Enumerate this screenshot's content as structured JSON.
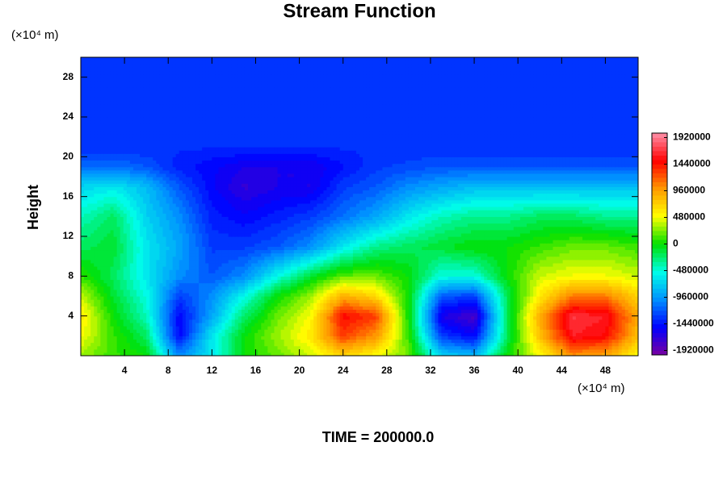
{
  "chart_data": {
    "type": "contour",
    "title": "Stream Function",
    "y_label": "Height",
    "y_unit": "(×10⁴ m)",
    "x_unit": "(×10⁴ m)",
    "footer": "TIME = 200000.0",
    "x": [
      0,
      3,
      6,
      9,
      12,
      15,
      18,
      21,
      24,
      27,
      30,
      33,
      36,
      39,
      42,
      45,
      48,
      51
    ],
    "y": [
      0,
      2,
      4,
      6,
      8,
      11,
      14,
      17,
      19,
      21,
      25,
      30
    ],
    "z": [
      [
        300000,
        100000,
        0,
        -1000000,
        -600000,
        0,
        200000,
        400000,
        700000,
        500000,
        200000,
        -700000,
        -800000,
        0,
        500000,
        1000000,
        900000,
        500000
      ],
      [
        500000,
        100000,
        -200000,
        -1500000,
        -600000,
        0,
        300000,
        600000,
        1300000,
        1000000,
        100000,
        -1300000,
        -1500000,
        -200000,
        800000,
        1600000,
        1500000,
        800000
      ],
      [
        600000,
        0,
        -400000,
        -1500000,
        -900000,
        -200000,
        200000,
        500000,
        1500000,
        1300000,
        0,
        -1600000,
        -1800000,
        -200000,
        900000,
        1700000,
        1600000,
        900000
      ],
      [
        400000,
        -100000,
        -500000,
        -1300000,
        -1000000,
        -500000,
        0,
        300000,
        900000,
        700000,
        0,
        -1200000,
        -1300000,
        -200000,
        600000,
        1100000,
        1100000,
        700000
      ],
      [
        100000,
        -200000,
        -600000,
        -1000000,
        -1200000,
        -1000000,
        -500000,
        -100000,
        200000,
        200000,
        0,
        -500000,
        -500000,
        0,
        400000,
        500000,
        500000,
        400000
      ],
      [
        -200000,
        -100000,
        -600000,
        -900000,
        -1300000,
        -1300000,
        -1200000,
        -1000000,
        -600000,
        -300000,
        -200000,
        -100000,
        0,
        0,
        100000,
        200000,
        200000,
        100000
      ],
      [
        -400000,
        -200000,
        -700000,
        -1000000,
        -1400000,
        -1500000,
        -1400000,
        -1300000,
        -1100000,
        -900000,
        -600000,
        -400000,
        -300000,
        -300000,
        -200000,
        -200000,
        -300000,
        -300000
      ],
      [
        -700000,
        -600000,
        -800000,
        -1200000,
        -1500000,
        -1700000,
        -1600000,
        -1600000,
        -1300000,
        -1200000,
        -1000000,
        -900000,
        -800000,
        -800000,
        -800000,
        -800000,
        -800000,
        -800000
      ],
      [
        -1100000,
        -1100000,
        -1200000,
        -1400000,
        -1500000,
        -1600000,
        -1600000,
        -1600000,
        -1450000,
        -1300000,
        -1250000,
        -1200000,
        -1200000,
        -1200000,
        -1200000,
        -1200000,
        -1200000,
        -1200000
      ],
      [
        -1350000,
        -1350000,
        -1350000,
        -1350000,
        -1350000,
        -1350000,
        -1350000,
        -1350000,
        -1350000,
        -1350000,
        -1350000,
        -1350000,
        -1350000,
        -1350000,
        -1350000,
        -1350000,
        -1350000,
        -1350000
      ],
      [
        -1350000,
        -1350000,
        -1350000,
        -1350000,
        -1350000,
        -1350000,
        -1350000,
        -1350000,
        -1350000,
        -1350000,
        -1350000,
        -1350000,
        -1350000,
        -1350000,
        -1350000,
        -1350000,
        -1350000,
        -1350000
      ],
      [
        -1350000,
        -1350000,
        -1350000,
        -1350000,
        -1350000,
        -1350000,
        -1350000,
        -1350000,
        -1350000,
        -1350000,
        -1350000,
        -1350000,
        -1350000,
        -1350000,
        -1350000,
        -1350000,
        -1350000,
        -1350000
      ]
    ],
    "xlim": [
      0,
      51
    ],
    "ylim": [
      0,
      30
    ],
    "xticks": [
      4,
      8,
      12,
      16,
      20,
      24,
      28,
      32,
      36,
      40,
      44,
      48
    ],
    "yticks": [
      4,
      8,
      12,
      16,
      20,
      24,
      28
    ],
    "clim": [
      -2000000,
      2000000
    ],
    "cticks": [
      1920000,
      1440000,
      960000,
      480000,
      0,
      -480000,
      -960000,
      -1440000,
      -1920000
    ],
    "contour_interval": 80000,
    "colorscale": [
      "#7a00a0",
      "#0000ff",
      "#0090ff",
      "#00ffe8",
      "#00e000",
      "#ffff00",
      "#ff9800",
      "#ff0000",
      "#ff8fa8"
    ]
  }
}
